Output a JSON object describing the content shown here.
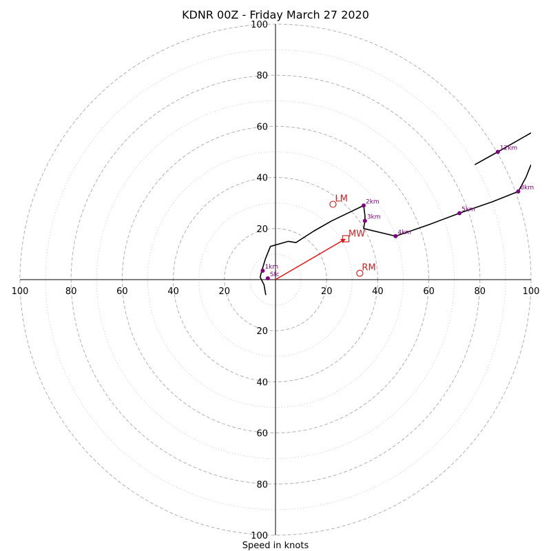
{
  "chart_data": {
    "type": "hodograph",
    "title": "KDNR 00Z - Friday March 27 2020",
    "xlabel": "Speed in knots",
    "units": "knots",
    "xlim": [
      -100,
      100
    ],
    "ylim": [
      -100,
      100
    ],
    "dashed_rings": [
      20,
      40,
      60,
      80,
      100
    ],
    "dotted_rings": [
      10,
      30,
      50,
      70,
      90
    ],
    "x_tick_values": [
      -100,
      -80,
      -60,
      -40,
      -20,
      20,
      40,
      60,
      80,
      100
    ],
    "x_tick_labels": [
      "100",
      "80",
      "60",
      "40",
      "20",
      "20",
      "40",
      "60",
      "80",
      "100"
    ],
    "y_tick_values": [
      100,
      80,
      60,
      40,
      20,
      -20,
      -40,
      -60,
      -80,
      -100
    ],
    "y_tick_labels": [
      "100",
      "80",
      "60",
      "40",
      "20",
      "20",
      "40",
      "60",
      "80",
      "100"
    ],
    "trace": [
      [
        -3.8,
        -6
      ],
      [
        -4.5,
        -2
      ],
      [
        -6,
        1
      ],
      [
        -5.5,
        3
      ],
      [
        -4,
        8
      ],
      [
        -2,
        13
      ],
      [
        5,
        15
      ],
      [
        8,
        14.5
      ],
      [
        15,
        19
      ],
      [
        22,
        23
      ],
      [
        34.5,
        29
      ],
      [
        35,
        25
      ],
      [
        35,
        23
      ],
      [
        34.5,
        20
      ],
      [
        47,
        17
      ],
      [
        60,
        21.5
      ],
      [
        72,
        26
      ],
      [
        85,
        30.5
      ],
      [
        95,
        34.5
      ],
      [
        98,
        40
      ],
      [
        100,
        45
      ]
    ],
    "trace_upper": [
      [
        78,
        45
      ],
      [
        87,
        50
      ],
      [
        101,
        58
      ]
    ],
    "height_markers": [
      {
        "label": "Sfc",
        "u": -3,
        "v": 0.5
      },
      {
        "label": "1km",
        "u": -5,
        "v": 3.5
      },
      {
        "label": "2km",
        "u": 34.5,
        "v": 29
      },
      {
        "label": "3km",
        "u": 35,
        "v": 23
      },
      {
        "label": "4km",
        "u": 47,
        "v": 17
      },
      {
        "label": "5km",
        "u": 72,
        "v": 26
      },
      {
        "label": "8km",
        "u": 95,
        "v": 34.5
      },
      {
        "label": "12km",
        "u": 87,
        "v": 50
      }
    ],
    "storm_motion": {
      "mw": {
        "label": "MW",
        "u": 27.5,
        "v": 16
      },
      "lm": {
        "label": "LM",
        "u": 22.5,
        "v": 29.5
      },
      "rm": {
        "label": "RM",
        "u": 33,
        "v": 2.5
      }
    },
    "colors": {
      "trace": "#000000",
      "markers": "#800080",
      "storm": "#cc2222",
      "mean_wind_arrow": "#ee1111",
      "ring": "#b0b0b0",
      "axis": "#000000"
    }
  }
}
